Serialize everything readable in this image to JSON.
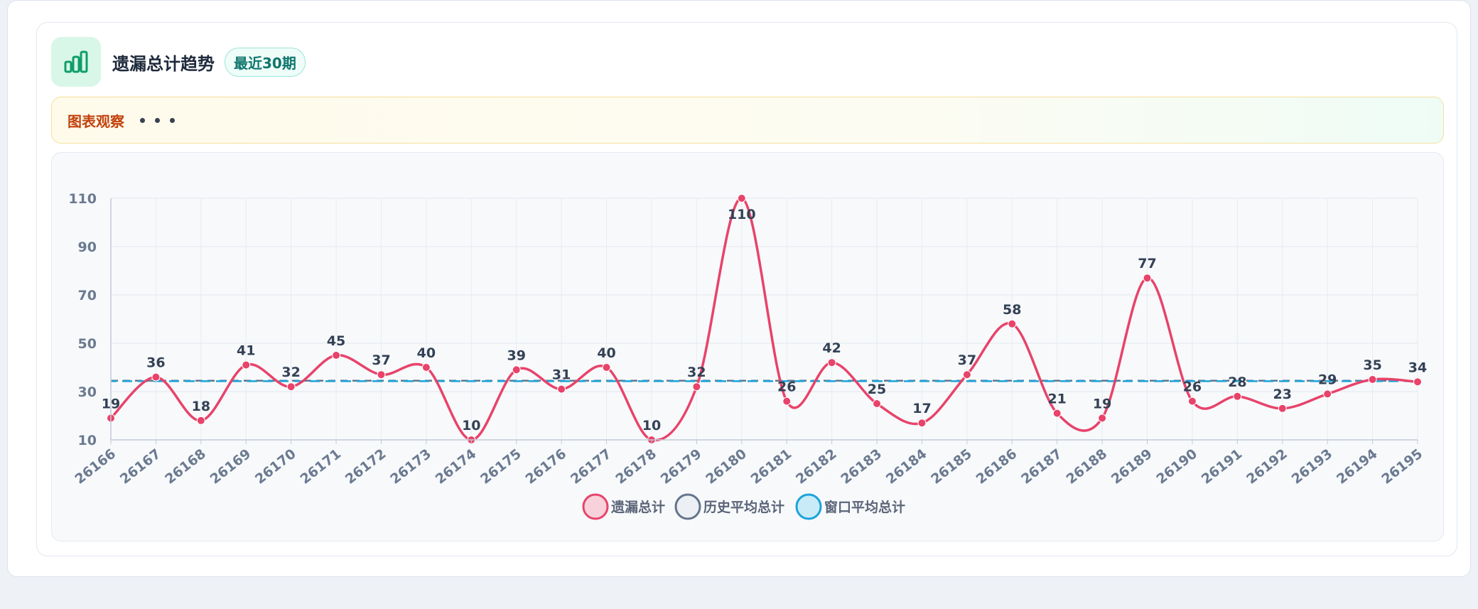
{
  "header": {
    "title": "遗漏总计趋势",
    "badge": "最近30期",
    "icon": "bar-chart-icon"
  },
  "observation": {
    "label": "图表观察"
  },
  "colors": {
    "main": "#e8436a",
    "history_avg": "#64748b",
    "window_avg": "#1aa3d9",
    "axis_text": "#6b7a90",
    "label_text": "#334155"
  },
  "chart_data": {
    "type": "line",
    "categories": [
      "26166",
      "26167",
      "26168",
      "26169",
      "26170",
      "26171",
      "26172",
      "26173",
      "26174",
      "26175",
      "26176",
      "26177",
      "26178",
      "26179",
      "26180",
      "26181",
      "26182",
      "26183",
      "26184",
      "26185",
      "26186",
      "26187",
      "26188",
      "26189",
      "26190",
      "26191",
      "26192",
      "26193",
      "26194",
      "26195"
    ],
    "series": [
      {
        "name": "遗漏总计",
        "values": [
          19,
          36,
          18,
          41,
          32,
          45,
          37,
          40,
          10,
          39,
          31,
          40,
          10,
          32,
          110,
          26,
          42,
          25,
          17,
          37,
          58,
          21,
          19,
          77,
          26,
          28,
          23,
          29,
          35,
          34
        ]
      },
      {
        "name": "历史平均总计",
        "values": [
          34.5,
          34.5,
          34.5,
          34.5,
          34.5,
          34.5,
          34.5,
          34.5,
          34.5,
          34.5,
          34.5,
          34.5,
          34.5,
          34.5,
          34.5,
          34.5,
          34.5,
          34.5,
          34.5,
          34.5,
          34.5,
          34.5,
          34.5,
          34.5,
          34.5,
          34.5,
          34.5,
          34.5,
          34.5,
          34.5
        ]
      },
      {
        "name": "窗口平均总计",
        "values": [
          34.3,
          34.3,
          34.3,
          34.3,
          34.3,
          34.3,
          34.3,
          34.3,
          34.3,
          34.3,
          34.3,
          34.3,
          34.3,
          34.3,
          34.3,
          34.3,
          34.3,
          34.3,
          34.3,
          34.3,
          34.3,
          34.3,
          34.3,
          34.3,
          34.3,
          34.3,
          34.3,
          34.3,
          34.3,
          34.3
        ]
      }
    ],
    "yticks": [
      10,
      30,
      50,
      70,
      90,
      110
    ],
    "ylim": [
      10,
      110
    ],
    "grid": true,
    "legend_position": "bottom-center"
  }
}
